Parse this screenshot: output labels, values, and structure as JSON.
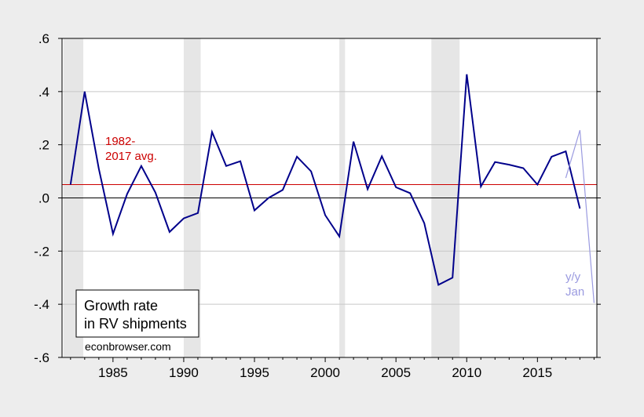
{
  "chart_data": {
    "type": "line",
    "title": "",
    "xlabel": "",
    "ylabel": "",
    "xlim": [
      1981.4,
      2019.2
    ],
    "ylim": [
      -0.6,
      0.6
    ],
    "x_ticks": [
      1985,
      1990,
      1995,
      2000,
      2005,
      2010,
      2015
    ],
    "x_tick_labels": [
      "1985",
      "1990",
      "1995",
      "2000",
      "2005",
      "2010",
      "2015"
    ],
    "y_ticks": [
      -0.6,
      -0.4,
      -0.2,
      0.0,
      0.2,
      0.4,
      0.6
    ],
    "y_tick_labels": [
      "-.6",
      "-.4",
      "-.2",
      ".0",
      ".2",
      ".4",
      ".6"
    ],
    "grid": true,
    "recession_shading": [
      [
        1981.5,
        1982.9
      ],
      [
        1990.0,
        1991.2
      ],
      [
        2001.0,
        2001.4
      ],
      [
        2007.5,
        2009.5
      ]
    ],
    "series": [
      {
        "color": "#00008b",
        "x": [
          1982,
          1983,
          1984,
          1985,
          1986,
          1987,
          1988,
          1989,
          1990,
          1991,
          1992,
          1993,
          1994,
          1995,
          1996,
          1997,
          1998,
          1999,
          2000,
          2001,
          2002,
          2003,
          2004,
          2005,
          2006,
          2007,
          2008,
          2009,
          2010,
          2011,
          2012,
          2013,
          2014,
          2015,
          2016,
          2017,
          2018
        ],
        "values": [
          0.05,
          0.4,
          0.11,
          -0.135,
          0.015,
          0.12,
          0.02,
          -0.128,
          -0.077,
          -0.057,
          0.248,
          0.12,
          0.138,
          -0.047,
          0.0,
          0.03,
          0.155,
          0.1,
          -0.065,
          -0.145,
          0.212,
          0.033,
          0.157,
          0.04,
          0.018,
          -0.095,
          -0.327,
          -0.3,
          0.465,
          0.043,
          0.135,
          0.125,
          0.112,
          0.05,
          0.155,
          0.175,
          -0.04
        ]
      },
      {
        "name": "y/y Jan",
        "color": "#9a9ae0",
        "x": [
          2017.0,
          2018.0,
          2019.0
        ],
        "values": [
          0.075,
          0.255,
          -0.395
        ]
      }
    ],
    "reference_lines": [
      {
        "value": 0.0,
        "color": "#000000"
      },
      {
        "value": 0.05,
        "color": "#cc0000"
      }
    ],
    "annotations": {
      "avg_label_line1": "1982-",
      "avg_label_line2": "2017 avg.",
      "avg_color": "#cc0000",
      "yy_label_line1": "y/y",
      "yy_label_line2": "Jan"
    },
    "legend": {
      "line1": "Growth rate",
      "line2": "in RV shipments",
      "placement": "bottom-left"
    },
    "source_label": "econbrowser.com"
  }
}
